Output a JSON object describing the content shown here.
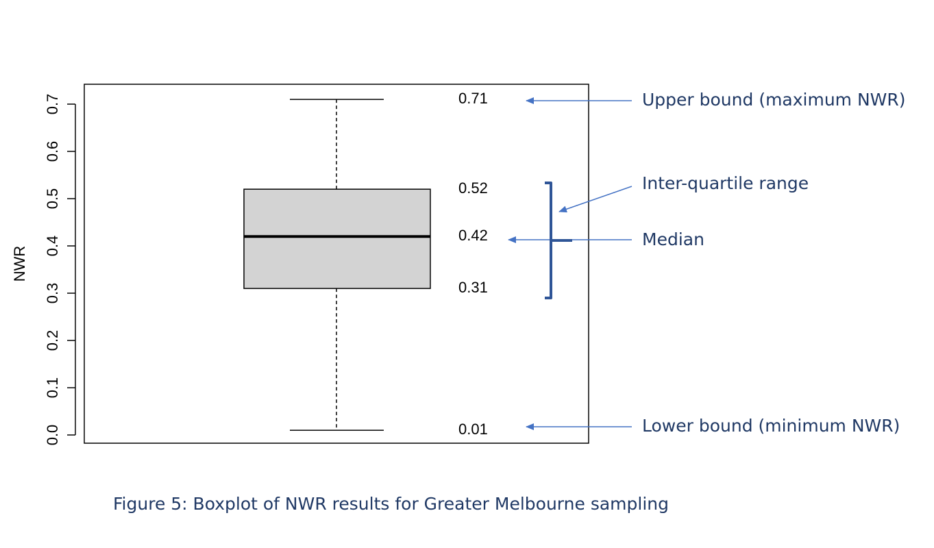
{
  "chart_data": {
    "type": "boxplot",
    "ylabel": "NWR",
    "ylim": [
      0.0,
      0.7
    ],
    "yticks": [
      "0.0",
      "0.1",
      "0.2",
      "0.3",
      "0.4",
      "0.5",
      "0.6",
      "0.7"
    ],
    "grid": false,
    "stats": {
      "min": 0.01,
      "q1": 0.31,
      "median": 0.42,
      "q3": 0.52,
      "max": 0.71
    },
    "value_labels": {
      "max": "0.71",
      "q3": "0.52",
      "median": "0.42",
      "q1": "0.31",
      "min": "0.01"
    },
    "annotations": {
      "upper": "Upper bound (maximum NWR)",
      "iqr": "Inter-quartile range",
      "median": "Median",
      "lower": "Lower bound (minimum NWR)"
    },
    "caption": "Figure 5: Boxplot of NWR results for Greater Melbourne sampling",
    "colors": {
      "box_fill": "#d3d3d3",
      "annotation": "#1f3864",
      "arrow": "#4472c4",
      "bracket": "#2f5597"
    }
  }
}
